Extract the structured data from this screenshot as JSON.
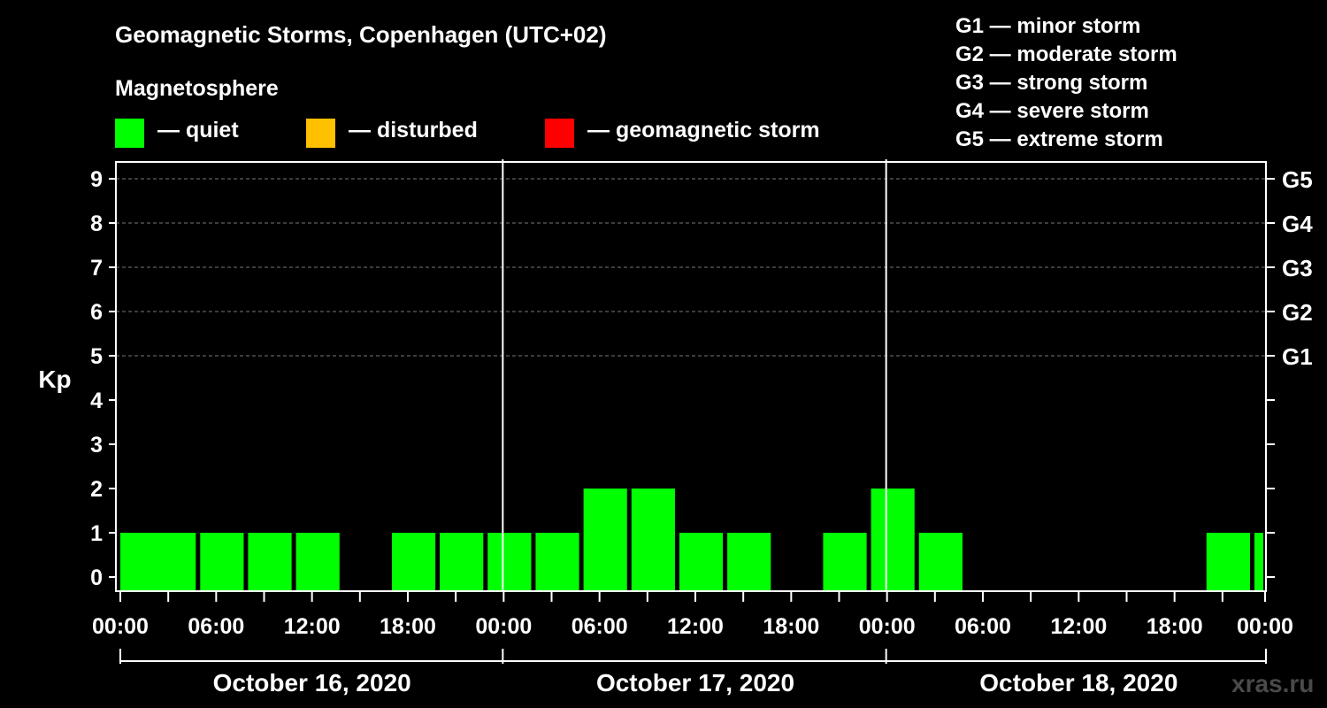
{
  "title": "Geomagnetic Storms, Copenhagen (UTC+02)",
  "subtitle": "Magnetosphere",
  "legend": [
    {
      "label": "— quiet",
      "color": "#00ff00"
    },
    {
      "label": "— disturbed",
      "color": "#ffc000"
    },
    {
      "label": "— geomagnetic storm",
      "color": "#ff0000"
    }
  ],
  "storm_scale": [
    "G1 — minor storm",
    "G2 — moderate storm",
    "G3 — strong storm",
    "G4 — severe storm",
    "G5 — extreme storm"
  ],
  "watermark": "xras.ru",
  "chart_data": {
    "type": "bar",
    "ylabel": "Kp",
    "ylim": [
      0,
      9
    ],
    "y_ticks": [
      0,
      1,
      2,
      3,
      4,
      5,
      6,
      7,
      8,
      9
    ],
    "right_ticks": [
      {
        "value": 5,
        "label": "G1"
      },
      {
        "value": 6,
        "label": "G2"
      },
      {
        "value": 7,
        "label": "G3"
      },
      {
        "value": 8,
        "label": "G4"
      },
      {
        "value": 9,
        "label": "G5"
      }
    ],
    "grid": true,
    "x_tick_labels": [
      "00:00",
      "06:00",
      "12:00",
      "18:00",
      "00:00",
      "06:00",
      "12:00",
      "18:00",
      "00:00",
      "06:00",
      "12:00",
      "18:00",
      "00:00"
    ],
    "dates": [
      "October 16, 2020",
      "October 17, 2020",
      "October 18, 2020"
    ],
    "bar_color": "#00ff00",
    "interval_hours": 3,
    "bars": [
      {
        "day": 0,
        "start_hour": 0,
        "kp": 1
      },
      {
        "day": 0,
        "start_hour": 2,
        "kp": 1
      },
      {
        "day": 0,
        "start_hour": 5,
        "kp": 1
      },
      {
        "day": 0,
        "start_hour": 8,
        "kp": 1
      },
      {
        "day": 0,
        "start_hour": 11,
        "kp": 1
      },
      {
        "day": 0,
        "start_hour": 14,
        "kp": 0
      },
      {
        "day": 0,
        "start_hour": 17,
        "kp": 1
      },
      {
        "day": 0,
        "start_hour": 20,
        "kp": 1
      },
      {
        "day": 0,
        "start_hour": 23,
        "kp": 1
      },
      {
        "day": 1,
        "start_hour": 2,
        "kp": 1
      },
      {
        "day": 1,
        "start_hour": 5,
        "kp": 2
      },
      {
        "day": 1,
        "start_hour": 8,
        "kp": 2
      },
      {
        "day": 1,
        "start_hour": 11,
        "kp": 1
      },
      {
        "day": 1,
        "start_hour": 14,
        "kp": 1
      },
      {
        "day": 1,
        "start_hour": 17,
        "kp": 0
      },
      {
        "day": 1,
        "start_hour": 20,
        "kp": 1
      },
      {
        "day": 1,
        "start_hour": 23,
        "kp": 2
      },
      {
        "day": 2,
        "start_hour": 2,
        "kp": 1
      },
      {
        "day": 2,
        "start_hour": 5,
        "kp": 0
      },
      {
        "day": 2,
        "start_hour": 8,
        "kp": 0
      },
      {
        "day": 2,
        "start_hour": 11,
        "kp": 0
      },
      {
        "day": 2,
        "start_hour": 14,
        "kp": 0
      },
      {
        "day": 2,
        "start_hour": 17,
        "kp": 0
      },
      {
        "day": 2,
        "start_hour": 20,
        "kp": 1
      },
      {
        "day": 2,
        "start_hour": 23,
        "kp": 1
      }
    ]
  }
}
